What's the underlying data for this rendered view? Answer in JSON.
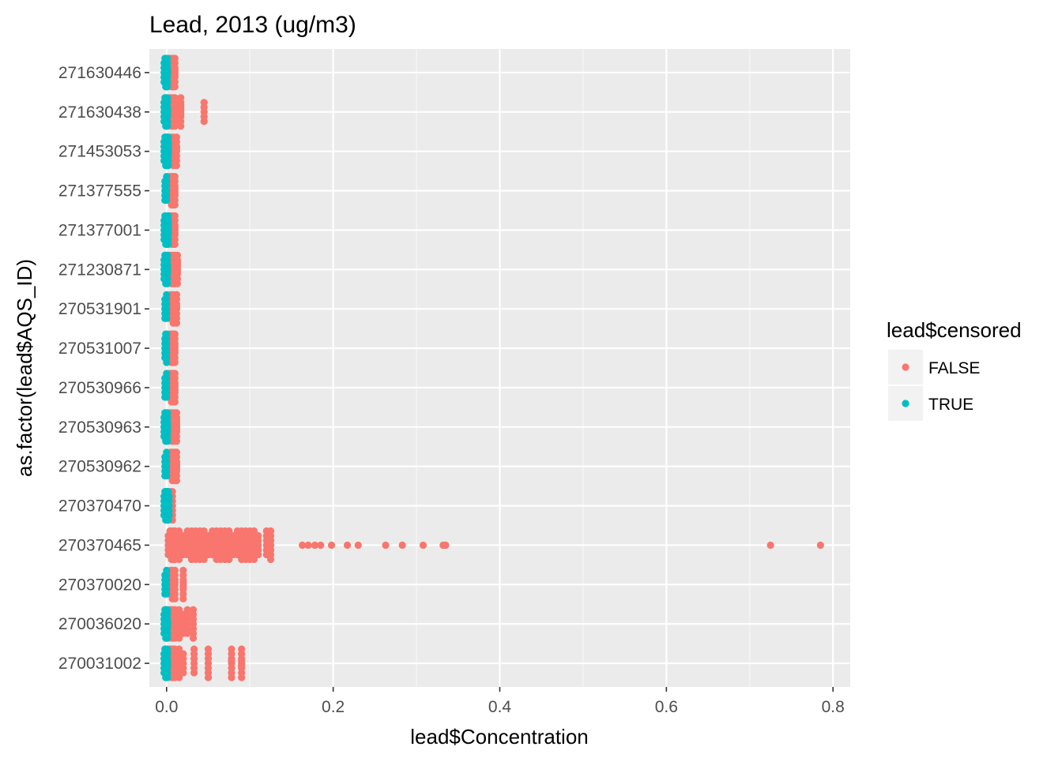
{
  "chart_data": {
    "type": "scatter",
    "title": "Lead, 2013 (ug/m3)",
    "xlabel": "lead$Concentration",
    "ylabel": "as.factor(lead$AQS_ID)",
    "xlim": [
      -0.0207,
      0.8207
    ],
    "x_ticks": [
      0.0,
      0.2,
      0.4,
      0.6,
      0.8
    ],
    "x_tick_labels": [
      "0.0",
      "0.2",
      "0.4",
      "0.6",
      "0.8"
    ],
    "categories": [
      "270031002",
      "270036020",
      "270370020",
      "270370465",
      "270370470",
      "270530962",
      "270530963",
      "270530966",
      "270531007",
      "270531901",
      "271230871",
      "271377001",
      "271377555",
      "271453053",
      "271630438",
      "271630446"
    ],
    "grid": true,
    "panel_background": "#ebebeb",
    "legend": {
      "title": "lead$censored",
      "position": "right",
      "entries": [
        {
          "label": "FALSE",
          "color": "#F8766D"
        },
        {
          "label": "TRUE",
          "color": "#00BFC4"
        }
      ]
    },
    "series": [
      {
        "name": "FALSE",
        "color": "#F8766D",
        "points": [
          {
            "category": "270031002",
            "x": [
              0.002,
              0.004,
              0.006,
              0.008,
              0.01,
              0.015,
              0.02,
              0.033,
              0.05,
              0.078,
              0.09
            ]
          },
          {
            "category": "270036020",
            "x": [
              0.002,
              0.004,
              0.006,
              0.008,
              0.01,
              0.015,
              0.02,
              0.025,
              0.032
            ]
          },
          {
            "category": "270370020",
            "x": [
              0.003,
              0.005,
              0.007,
              0.01,
              0.02
            ]
          },
          {
            "category": "270370465",
            "x": [
              0.002,
              0.004,
              0.006,
              0.008,
              0.01,
              0.015,
              0.02,
              0.025,
              0.03,
              0.035,
              0.04,
              0.045,
              0.05,
              0.055,
              0.06,
              0.065,
              0.07,
              0.075,
              0.08,
              0.085,
              0.09,
              0.095,
              0.1,
              0.105,
              0.11,
              0.12,
              0.125,
              0.163,
              0.17,
              0.178,
              0.185,
              0.198,
              0.217,
              0.23,
              0.263,
              0.283,
              0.308,
              0.332,
              0.335,
              0.725,
              0.785
            ]
          },
          {
            "category": "270370470",
            "x": [
              0.003,
              0.005,
              0.007
            ]
          },
          {
            "category": "270530962",
            "x": [
              0.003,
              0.005,
              0.007,
              0.01,
              0.012
            ]
          },
          {
            "category": "270530963",
            "x": [
              0.002,
              0.004,
              0.006,
              0.008,
              0.01,
              0.012
            ]
          },
          {
            "category": "270530966",
            "x": [
              0.002,
              0.004,
              0.006,
              0.008,
              0.01
            ]
          },
          {
            "category": "270531007",
            "x": [
              0.002,
              0.004,
              0.006,
              0.008,
              0.01
            ]
          },
          {
            "category": "270531901",
            "x": [
              0.003,
              0.005,
              0.008,
              0.012
            ]
          },
          {
            "category": "271230871",
            "x": [
              0.002,
              0.004,
              0.006,
              0.008,
              0.01,
              0.013
            ]
          },
          {
            "category": "271377001",
            "x": [
              0.002,
              0.004,
              0.006,
              0.008,
              0.01
            ]
          },
          {
            "category": "271377555",
            "x": [
              0.002,
              0.004,
              0.006,
              0.008,
              0.01
            ]
          },
          {
            "category": "271453053",
            "x": [
              0.003,
              0.005,
              0.008,
              0.012
            ]
          },
          {
            "category": "271630438",
            "x": [
              0.002,
              0.004,
              0.006,
              0.008,
              0.01,
              0.017,
              0.045
            ]
          },
          {
            "category": "271630446",
            "x": [
              0.002,
              0.004,
              0.006,
              0.008,
              0.01
            ]
          }
        ]
      },
      {
        "name": "TRUE",
        "color": "#00BFC4",
        "points": [
          {
            "category": "270031002",
            "x": [
              -0.003,
              -0.002,
              -0.001,
              0.0,
              0.001
            ]
          },
          {
            "category": "270036020",
            "x": [
              -0.003,
              -0.002,
              -0.001,
              0.0,
              0.001
            ]
          },
          {
            "category": "270370020",
            "x": [
              -0.002,
              0.0
            ]
          },
          {
            "category": "270370470",
            "x": [
              -0.003,
              -0.002,
              -0.001,
              0.0,
              0.001,
              0.002,
              0.003
            ]
          },
          {
            "category": "270530962",
            "x": [
              -0.002,
              0.0
            ]
          },
          {
            "category": "270530963",
            "x": [
              -0.003,
              -0.002,
              -0.001,
              0.0,
              0.001
            ]
          },
          {
            "category": "270530966",
            "x": [
              -0.002,
              0.0
            ]
          },
          {
            "category": "270531007",
            "x": [
              -0.002,
              -0.001,
              0.0
            ]
          },
          {
            "category": "270531901",
            "x": [
              -0.002,
              0.0
            ]
          },
          {
            "category": "271230871",
            "x": [
              -0.003,
              -0.002,
              -0.001,
              0.0,
              0.001
            ]
          },
          {
            "category": "271377001",
            "x": [
              -0.003,
              -0.002,
              -0.001,
              0.0,
              0.001,
              0.002
            ]
          },
          {
            "category": "271377555",
            "x": [
              -0.002,
              0.0
            ]
          },
          {
            "category": "271453053",
            "x": [
              -0.003,
              -0.002,
              -0.001,
              0.0,
              0.001,
              0.002
            ]
          },
          {
            "category": "271630438",
            "x": [
              -0.003,
              -0.002,
              -0.001,
              0.0,
              0.001
            ]
          },
          {
            "category": "271630446",
            "x": [
              -0.003,
              -0.002,
              -0.001,
              0.0,
              0.001
            ]
          }
        ]
      }
    ]
  }
}
